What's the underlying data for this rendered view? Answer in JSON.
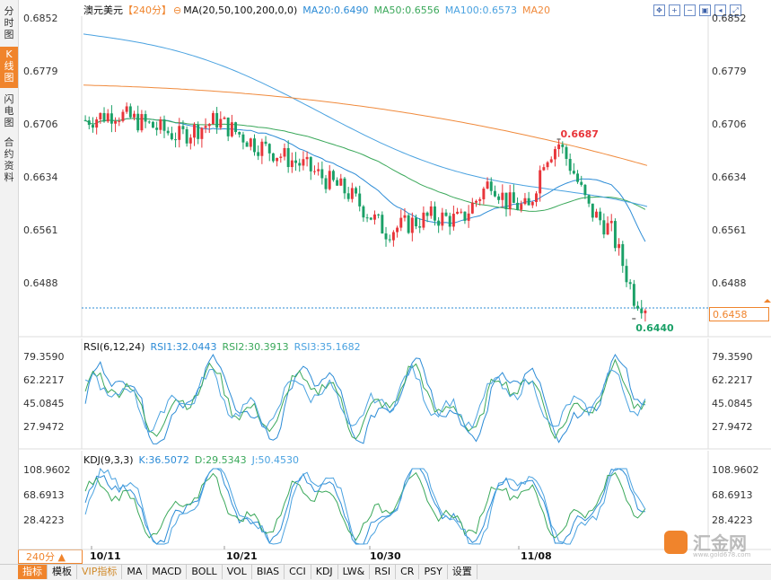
{
  "left_nav": [
    {
      "label": "分时图",
      "active": false
    },
    {
      "label": "K线图",
      "active": true
    },
    {
      "label": "闪电图",
      "active": false
    },
    {
      "label": "合约资料",
      "active": false
    }
  ],
  "main": {
    "symbol": "澳元美元",
    "period_tag": "【240分】",
    "ma_label": "MA(20,50,100,200,0,0)",
    "ma20": "MA20:0.6490",
    "ma50": "MA50:0.6556",
    "ma100": "MA100:0.6573",
    "ma200": "MA20",
    "y_ticks": [
      "0.6852",
      "0.6779",
      "0.6706",
      "0.6634",
      "0.6561",
      "0.6488"
    ],
    "high_label": "0.6687",
    "low_label": "0.6440",
    "current_price": "0.6458"
  },
  "rsi": {
    "label": "RSI(6,12,24)",
    "rsi1": "RSI1:32.0443",
    "rsi2": "RSI2:30.3913",
    "rsi3": "RSI3:35.1682",
    "y_ticks": [
      "79.3590",
      "62.2217",
      "45.0845",
      "27.9472"
    ]
  },
  "kdj": {
    "label": "KDJ(9,3,3)",
    "k": "K:36.5072",
    "d": "D:29.5343",
    "j": "J:50.4530",
    "y_ticks": [
      "108.9602",
      "68.6913",
      "28.4223"
    ]
  },
  "dates": [
    "10/11",
    "10/21",
    "10/30",
    "11/08"
  ],
  "period_button": "240分 ▲",
  "bottom_tabs": [
    {
      "label": "指标",
      "active": true
    },
    {
      "label": "模板"
    },
    {
      "label": "VIP指标",
      "vip": true
    },
    {
      "label": "MA"
    },
    {
      "label": "MACD"
    },
    {
      "label": "BOLL"
    },
    {
      "label": "VOL"
    },
    {
      "label": "BIAS"
    },
    {
      "label": "CCI"
    },
    {
      "label": "KDJ"
    },
    {
      "label": "LW&"
    },
    {
      "label": "RSI"
    },
    {
      "label": "CR"
    },
    {
      "label": "PSY"
    },
    {
      "label": "设置"
    }
  ],
  "toolbar_icons": [
    "move-icon",
    "zoom-in-icon",
    "zoom-out-icon",
    "reset-icon",
    "back-icon",
    "fullscreen-icon"
  ],
  "logo_text": "汇金网",
  "logo_url": "www.gold678.com",
  "colors": {
    "up": "#e8353a",
    "down": "#1aa067",
    "ma20": "#2b8bd6",
    "ma50": "#3aa85a",
    "ma100": "#4aa2e0",
    "ma200": "#f08a3c",
    "accent": "#f0842c"
  }
}
